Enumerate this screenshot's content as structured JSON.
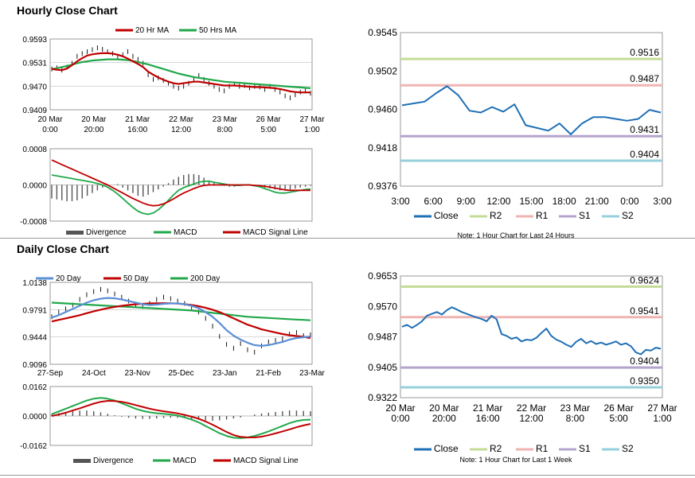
{
  "sections": {
    "hourly_title": "Hourly Close Chart",
    "daily_title": "Daily Close Chart"
  },
  "colors": {
    "ma_short": "#c00000",
    "ma_long": "#21a84a",
    "ma_blue": "#5b8fd6",
    "close_line": "#1f6fb5",
    "r2": "#c4dc96",
    "r1": "#efb4b2",
    "s1": "#b4a4cc",
    "s2": "#96d0dc",
    "divergence": "#555555",
    "candle": "#000000",
    "grid": "#bfbfbf"
  },
  "chart_data": [
    {
      "id": "hourly-price",
      "type": "line",
      "yticks": [
        "0.9593",
        "0.9531",
        "0.9470",
        "0.9409"
      ],
      "ylim": [
        0.9409,
        0.9593
      ],
      "xticks": [
        [
          "20 Mar",
          "0:00"
        ],
        [
          "20 Mar",
          "20:00"
        ],
        [
          "21 Mar",
          "16:00"
        ],
        [
          "22 Mar",
          "12:00"
        ],
        [
          "23 Mar",
          "8:00"
        ],
        [
          "26 Mar",
          "5:00"
        ],
        [
          "27 Mar",
          "1:00"
        ]
      ],
      "legend": [
        "20 Hr MA",
        "50 Hrs MA"
      ],
      "series": [
        {
          "name": "Price",
          "values": [
            0.9515,
            0.9518,
            0.9512,
            0.952,
            0.953,
            0.9548,
            0.9555,
            0.956,
            0.9565,
            0.957,
            0.9566,
            0.956,
            0.9555,
            0.9545,
            0.9552,
            0.956,
            0.9548,
            0.954,
            0.953,
            0.95,
            0.9488,
            0.9492,
            0.9485,
            0.9478,
            0.947,
            0.9465,
            0.947,
            0.9478,
            0.949,
            0.9498,
            0.9488,
            0.9478,
            0.947,
            0.9462,
            0.9458,
            0.947,
            0.9476,
            0.947,
            0.9472,
            0.9466,
            0.947,
            0.9468,
            0.9462,
            0.947,
            0.9462,
            0.9455,
            0.9445,
            0.944,
            0.9448,
            0.9455,
            0.9458,
            0.9452
          ]
        },
        {
          "name": "20 Hr MA",
          "values": [
            0.9515,
            0.9513,
            0.9512,
            0.9516,
            0.9525,
            0.9535,
            0.9543,
            0.955,
            0.9553,
            0.9555,
            0.9556,
            0.9556,
            0.9555,
            0.9552,
            0.9548,
            0.9542,
            0.9535,
            0.9528,
            0.952,
            0.9508,
            0.95,
            0.9493,
            0.9487,
            0.9482,
            0.9478,
            0.9476,
            0.9478,
            0.948,
            0.9482,
            0.9482,
            0.948,
            0.9478,
            0.9476,
            0.9474,
            0.9472,
            0.9472,
            0.9472,
            0.9471,
            0.947,
            0.9469,
            0.9468,
            0.9468,
            0.9467,
            0.9466,
            0.9465,
            0.9463,
            0.946,
            0.9457,
            0.9455,
            0.9454,
            0.9454,
            0.9454
          ]
        },
        {
          "name": "50 Hrs MA",
          "values": [
            0.9515,
            0.9517,
            0.952,
            0.9523,
            0.9526,
            0.953,
            0.9533,
            0.9535,
            0.9537,
            0.9538,
            0.9539,
            0.954,
            0.954,
            0.954,
            0.9539,
            0.9538,
            0.9536,
            0.9533,
            0.953,
            0.9527,
            0.9523,
            0.9519,
            0.9515,
            0.9511,
            0.9507,
            0.9503,
            0.95,
            0.9497,
            0.9494,
            0.9492,
            0.949,
            0.9488,
            0.9486,
            0.9484,
            0.9482,
            0.9481,
            0.948,
            0.9479,
            0.9478,
            0.9477,
            0.9476,
            0.9475,
            0.9474,
            0.9473,
            0.9472,
            0.9471,
            0.947,
            0.9469,
            0.9468,
            0.9467,
            0.9466,
            0.9465
          ]
        }
      ]
    },
    {
      "id": "hourly-macd",
      "type": "line",
      "yticks": [
        "0.0008",
        "0.0000",
        "-0.0008"
      ],
      "ylim": [
        -0.0008,
        0.0008
      ],
      "legend": [
        "Divergence",
        "MACD",
        "MACD Signal Line"
      ],
      "series": [
        {
          "name": "Divergence",
          "values": [
            -0.0003,
            -0.00032,
            -0.00034,
            -0.00036,
            -0.00036,
            -0.00034,
            -0.0003,
            -0.00024,
            -0.00018,
            -0.00012,
            -6e-05,
            -2e-05,
            0.0,
            2e-05,
            -6e-05,
            -0.00012,
            -0.00018,
            -0.00024,
            -0.00026,
            -0.00022,
            -0.00016,
            -0.0001,
            -4e-05,
            4e-05,
            0.00012,
            0.00018,
            0.00022,
            0.00024,
            0.00024,
            0.00022,
            0.00016,
            0.0001,
            6e-05,
            2e-05,
            -2e-05,
            -4e-05,
            -4e-05,
            -2e-05,
            0.0,
            0.0,
            -2e-05,
            -4e-05,
            -6e-05,
            -8e-05,
            -0.0001,
            -0.00012,
            -0.00012,
            -0.0001,
            -8e-05,
            -6e-05,
            -4e-05,
            -2e-05
          ]
        },
        {
          "name": "MACD",
          "values": [
            0.00022,
            0.0002,
            0.00018,
            0.00016,
            0.00014,
            0.00012,
            0.0001,
            8e-05,
            6e-05,
            3e-05,
            0.0,
            -5e-05,
            -0.00012,
            -0.0002,
            -0.0003,
            -0.0004,
            -0.0005,
            -0.00058,
            -0.00063,
            -0.00065,
            -0.00062,
            -0.00055,
            -0.00045,
            -0.00034,
            -0.00022,
            -0.00012,
            -6e-05,
            -2e-05,
            2e-05,
            6e-05,
            8e-05,
            8e-05,
            6e-05,
            4e-05,
            2e-05,
            0.0,
            -1e-05,
            -1e-05,
            0.0,
            0.0,
            -2e-05,
            -4e-05,
            -8e-05,
            -0.00012,
            -0.00016,
            -0.00018,
            -0.00018,
            -0.00016,
            -0.00014,
            -0.00012,
            -0.0001,
            -9e-05
          ]
        },
        {
          "name": "MACD Signal Line",
          "values": [
            0.00055,
            0.0005,
            0.00045,
            0.0004,
            0.00035,
            0.0003,
            0.00025,
            0.0002,
            0.00015,
            0.0001,
            5e-05,
            0.0,
            -6e-05,
            -0.00012,
            -0.00018,
            -0.00024,
            -0.0003,
            -0.00035,
            -0.0004,
            -0.00044,
            -0.00046,
            -0.00045,
            -0.00042,
            -0.00037,
            -0.00031,
            -0.00024,
            -0.00018,
            -0.00013,
            -8e-05,
            -4e-05,
            -1e-05,
            0.0,
            0.0,
            0.0,
            0.0,
            0.0,
            0.0,
            0.0,
            0.0,
            0.0,
            -1e-05,
            -2e-05,
            -3e-05,
            -5e-05,
            -7e-05,
            -9e-05,
            -0.00011,
            -0.00012,
            -0.00012,
            -0.00012,
            -0.00012,
            -0.00012
          ]
        }
      ]
    },
    {
      "id": "hourly-levels",
      "type": "line",
      "yticks": [
        "0.9545",
        "0.9502",
        "0.9460",
        "0.9418",
        "0.9376"
      ],
      "ylim": [
        0.9376,
        0.9545
      ],
      "xticks": [
        "3:00",
        "6:00",
        "9:00",
        "12:00",
        "15:00",
        "18:00",
        "21:00",
        "0:00",
        "3:00"
      ],
      "levels": [
        {
          "name": "R2",
          "value": 0.9516,
          "label": "0.9516"
        },
        {
          "name": "R1",
          "value": 0.9487,
          "label": "0.9487"
        },
        {
          "name": "S1",
          "value": 0.9431,
          "label": "0.9431"
        },
        {
          "name": "S2",
          "value": 0.9404,
          "label": "0.9404"
        }
      ],
      "legend": [
        "Close",
        "R2",
        "R1",
        "S1",
        "S2"
      ],
      "note": "Note: 1 Hour Chart for Last 24 Hours",
      "series": [
        {
          "name": "Close",
          "values": [
            0.9465,
            0.9467,
            0.9469,
            0.9478,
            0.9486,
            0.9476,
            0.9459,
            0.9457,
            0.9463,
            0.9458,
            0.9466,
            0.9443,
            0.944,
            0.9437,
            0.9445,
            0.9433,
            0.9445,
            0.9452,
            0.9452,
            0.945,
            0.9448,
            0.945,
            0.946,
            0.9457
          ]
        }
      ]
    },
    {
      "id": "daily-price",
      "type": "line",
      "yticks": [
        "1.0138",
        "0.9791",
        "0.9444",
        "0.9096"
      ],
      "ylim": [
        0.9096,
        1.0138
      ],
      "xticks": [
        "27-Sep",
        "24-Oct",
        "23-Nov",
        "25-Dec",
        "23-Jan",
        "21-Feb",
        "23-Mar"
      ],
      "legend": [
        "20 Day",
        "50 Day",
        "200 Day"
      ],
      "series": [
        {
          "name": "Price",
          "values": [
            0.97,
            0.976,
            0.98,
            0.985,
            0.992,
            0.998,
            1.002,
            1.005,
            1.003,
            0.999,
            0.995,
            0.99,
            0.986,
            0.983,
            0.987,
            0.992,
            0.995,
            0.993,
            0.99,
            0.987,
            0.982,
            0.976,
            0.968,
            0.958,
            0.945,
            0.935,
            0.93,
            0.936,
            0.928,
            0.925,
            0.933,
            0.938,
            0.94,
            0.942,
            0.948,
            0.95,
            0.946,
            0.947
          ]
        },
        {
          "name": "20 Day",
          "values": [
            0.969,
            0.972,
            0.976,
            0.98,
            0.984,
            0.988,
            0.991,
            0.993,
            0.994,
            0.9935,
            0.992,
            0.99,
            0.988,
            0.986,
            0.985,
            0.9855,
            0.9865,
            0.987,
            0.987,
            0.986,
            0.984,
            0.981,
            0.976,
            0.97,
            0.962,
            0.953,
            0.946,
            0.941,
            0.937,
            0.934,
            0.933,
            0.934,
            0.936,
            0.938,
            0.941,
            0.943,
            0.944,
            0.945
          ]
        },
        {
          "name": "50 Day",
          "values": [
            0.964,
            0.966,
            0.968,
            0.97,
            0.972,
            0.9745,
            0.977,
            0.979,
            0.981,
            0.9825,
            0.984,
            0.985,
            0.986,
            0.9865,
            0.987,
            0.9872,
            0.9873,
            0.9872,
            0.9868,
            0.986,
            0.985,
            0.9835,
            0.9815,
            0.979,
            0.976,
            0.972,
            0.968,
            0.964,
            0.96,
            0.957,
            0.954,
            0.952,
            0.95,
            0.948,
            0.9465,
            0.9455,
            0.9445,
            0.943
          ]
        },
        {
          "name": "200 Day",
          "values": [
            0.988,
            0.9875,
            0.987,
            0.9865,
            0.986,
            0.9855,
            0.985,
            0.9845,
            0.984,
            0.9835,
            0.983,
            0.9825,
            0.982,
            0.9815,
            0.981,
            0.9805,
            0.98,
            0.9795,
            0.979,
            0.9785,
            0.978,
            0.977,
            0.976,
            0.975,
            0.974,
            0.973,
            0.972,
            0.971,
            0.97,
            0.9695,
            0.969,
            0.9685,
            0.968,
            0.9675,
            0.967,
            0.9665,
            0.966,
            0.9655
          ]
        }
      ]
    },
    {
      "id": "daily-macd",
      "type": "line",
      "yticks": [
        "0.0162",
        "0.0000",
        "-0.0162"
      ],
      "ylim": [
        -0.0162,
        0.0162
      ],
      "legend": [
        "Divergence",
        "MACD",
        "MACD Signal Line"
      ],
      "series": [
        {
          "name": "Divergence",
          "values": [
            0.001,
            0.0016,
            0.0022,
            0.0026,
            0.003,
            0.003,
            0.0026,
            0.002,
            0.0012,
            0.0004,
            -0.0004,
            -0.001,
            -0.0014,
            -0.0016,
            -0.0016,
            -0.0014,
            -0.0012,
            -0.001,
            -0.001,
            -0.0012,
            -0.0016,
            -0.002,
            -0.0024,
            -0.0026,
            -0.0024,
            -0.002,
            -0.0014,
            -0.0008,
            0.0,
            0.0008,
            0.0014,
            0.0018,
            0.0022,
            0.0026,
            0.003,
            0.003,
            0.0028,
            0.0026
          ]
        },
        {
          "name": "MACD",
          "values": [
            0.001,
            0.0025,
            0.004,
            0.0055,
            0.007,
            0.0085,
            0.0095,
            0.01,
            0.0095,
            0.0085,
            0.007,
            0.0055,
            0.004,
            0.0028,
            0.002,
            0.0015,
            0.0012,
            0.0008,
            0.0002,
            -0.0008,
            -0.002,
            -0.0035,
            -0.0055,
            -0.0075,
            -0.0095,
            -0.011,
            -0.012,
            -0.0122,
            -0.0118,
            -0.011,
            -0.0098,
            -0.0085,
            -0.007,
            -0.0055,
            -0.004,
            -0.0028,
            -0.0022,
            -0.002
          ]
        },
        {
          "name": "MACD Signal Line",
          "values": [
            0.0,
            0.0008,
            0.0018,
            0.003,
            0.0042,
            0.0055,
            0.0068,
            0.0078,
            0.0083,
            0.0082,
            0.0078,
            0.007,
            0.006,
            0.005,
            0.004,
            0.0032,
            0.0026,
            0.002,
            0.0014,
            0.0006,
            -0.0004,
            -0.0015,
            -0.003,
            -0.0048,
            -0.0068,
            -0.0088,
            -0.0105,
            -0.0115,
            -0.0118,
            -0.0118,
            -0.0114,
            -0.0106,
            -0.0096,
            -0.0085,
            -0.0074,
            -0.0062,
            -0.0052,
            -0.0044
          ]
        }
      ]
    },
    {
      "id": "daily-levels",
      "type": "line",
      "yticks": [
        "0.9653",
        "0.9570",
        "0.9487",
        "0.9405",
        "0.9322"
      ],
      "ylim": [
        0.9322,
        0.9653
      ],
      "xticks": [
        [
          "20 Mar",
          "0:00"
        ],
        [
          "20 Mar",
          "20:00"
        ],
        [
          "21 Mar",
          "16:00"
        ],
        [
          "22 Mar",
          "12:00"
        ],
        [
          "23 Mar",
          "8:00"
        ],
        [
          "26 Mar",
          "5:00"
        ],
        [
          "27 Mar",
          "1:00"
        ]
      ],
      "levels": [
        {
          "name": "R2",
          "value": 0.9624,
          "label": "0.9624"
        },
        {
          "name": "R1",
          "value": 0.9541,
          "label": "0.9541"
        },
        {
          "name": "S1",
          "value": 0.9404,
          "label": "0.9404"
        },
        {
          "name": "S2",
          "value": 0.935,
          "label": "0.9350"
        }
      ],
      "legend": [
        "Close",
        "R2",
        "R1",
        "S1",
        "S2"
      ],
      "note": "Note: 1 Hour Chart for Last 1 Week",
      "series": [
        {
          "name": "Close",
          "values": [
            0.9515,
            0.952,
            0.9512,
            0.952,
            0.953,
            0.9545,
            0.955,
            0.9555,
            0.9548,
            0.956,
            0.9568,
            0.9562,
            0.9555,
            0.955,
            0.9545,
            0.954,
            0.9536,
            0.953,
            0.9545,
            0.9535,
            0.9495,
            0.949,
            0.9482,
            0.9486,
            0.9475,
            0.948,
            0.9478,
            0.9485,
            0.9498,
            0.951,
            0.949,
            0.948,
            0.9474,
            0.9466,
            0.946,
            0.9474,
            0.9482,
            0.947,
            0.9476,
            0.9468,
            0.9472,
            0.9466,
            0.947,
            0.9475,
            0.9466,
            0.947,
            0.9462,
            0.9445,
            0.944,
            0.9452,
            0.945,
            0.9458,
            0.9455
          ]
        }
      ]
    }
  ]
}
